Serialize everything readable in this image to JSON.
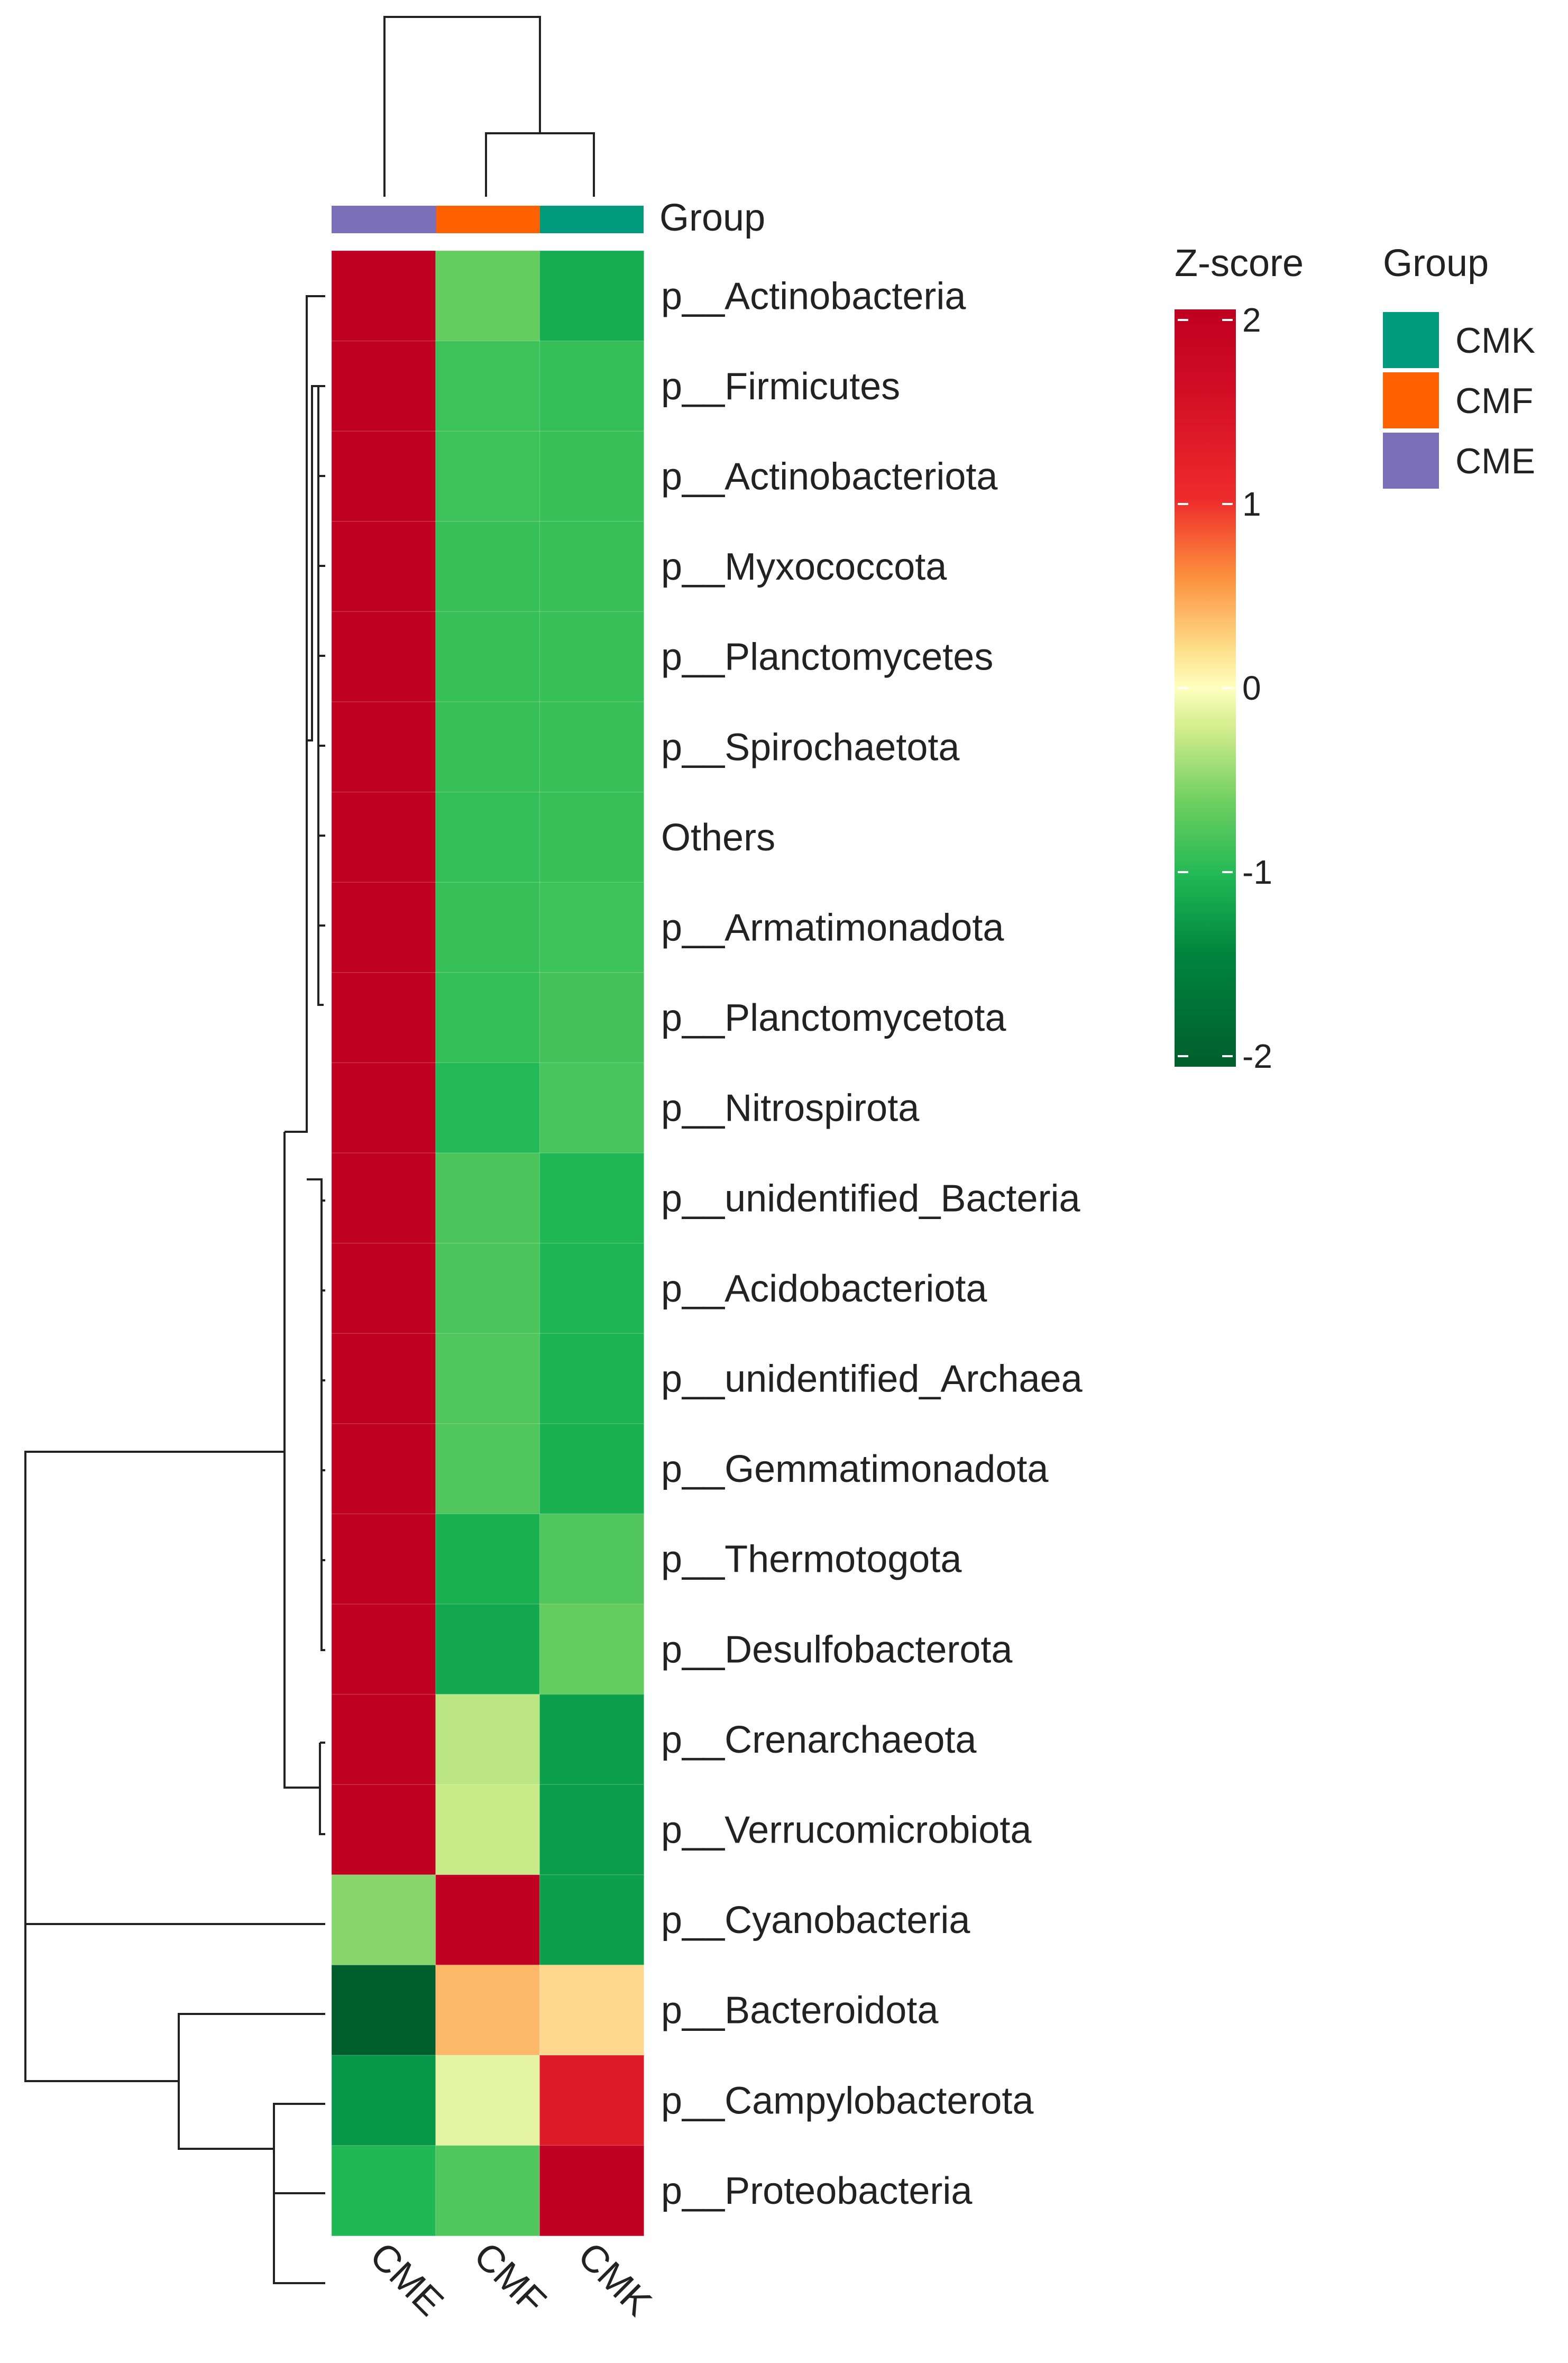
{
  "chart_data": {
    "type": "heatmap",
    "title": "",
    "xlabel": "",
    "ylabel": "",
    "columns": [
      "CME",
      "CMF",
      "CMK"
    ],
    "column_groups": [
      "CME",
      "CMF",
      "CMK"
    ],
    "rows": [
      "p__Actinobacteria",
      "p__Firmicutes",
      "p__Actinobacteriota",
      "p__Myxococcota",
      "p__Planctomycetes",
      "p__Spirochaetota",
      "Others",
      "p__Armatimonadota",
      "p__Planctomycetota",
      "p__Nitrospirota",
      "p__unidentified_Bacteria",
      "p__Acidobacteriota",
      "p__unidentified_Archaea",
      "p__Gemmatimonadota",
      "p__Thermotogota",
      "p__Desulfobacterota",
      "p__Crenarchaeota",
      "p__Verrucomicrobiota",
      "p__Cyanobacteria",
      "p__Bacteroidota",
      "p__Campylobacterota",
      "p__Proteobacteria"
    ],
    "values": [
      [
        2.0,
        -0.45,
        -0.95
      ],
      [
        2.0,
        -0.65,
        -0.7
      ],
      [
        2.0,
        -0.65,
        -0.68
      ],
      [
        2.0,
        -0.68,
        -0.68
      ],
      [
        2.0,
        -0.68,
        -0.68
      ],
      [
        2.0,
        -0.68,
        -0.68
      ],
      [
        2.0,
        -0.7,
        -0.68
      ],
      [
        2.0,
        -0.68,
        -0.65
      ],
      [
        2.0,
        -0.7,
        -0.62
      ],
      [
        2.0,
        -0.78,
        -0.6
      ],
      [
        2.0,
        -0.58,
        -0.8
      ],
      [
        2.0,
        -0.58,
        -0.82
      ],
      [
        2.0,
        -0.55,
        -0.85
      ],
      [
        2.0,
        -0.55,
        -0.9
      ],
      [
        2.0,
        -0.9,
        -0.55
      ],
      [
        2.0,
        -1.0,
        -0.45
      ],
      [
        2.0,
        -0.1,
        -1.1
      ],
      [
        2.0,
        -0.05,
        -1.15
      ],
      [
        -0.3,
        2.0,
        -1.1
      ],
      [
        -2.0,
        0.85,
        0.65
      ],
      [
        -1.2,
        0.15,
        1.75
      ],
      [
        -0.8,
        -0.55,
        2.0
      ]
    ],
    "colorbar": {
      "label": "Z-score",
      "range": [
        -2,
        2
      ],
      "ticks": [
        2,
        1,
        0,
        -1,
        -2
      ],
      "tick_labels": [
        "2",
        "1",
        "0",
        "-1",
        "-2"
      ],
      "colors": [
        "#c00020",
        "#ee2b2b",
        "#ff7f3a",
        "#fdc070",
        "#ffffbf",
        "#d5ee8e",
        "#6fcf60",
        "#1fb855",
        "#069848",
        "#00793a",
        "#005e2d"
      ]
    },
    "group_annotation": {
      "label": "Group",
      "legend_title": "Group",
      "legend": [
        {
          "name": "CMK",
          "color": "#009b7d"
        },
        {
          "name": "CMF",
          "color": "#ff6100"
        },
        {
          "name": "CME",
          "color": "#7b6fb9"
        }
      ]
    }
  }
}
